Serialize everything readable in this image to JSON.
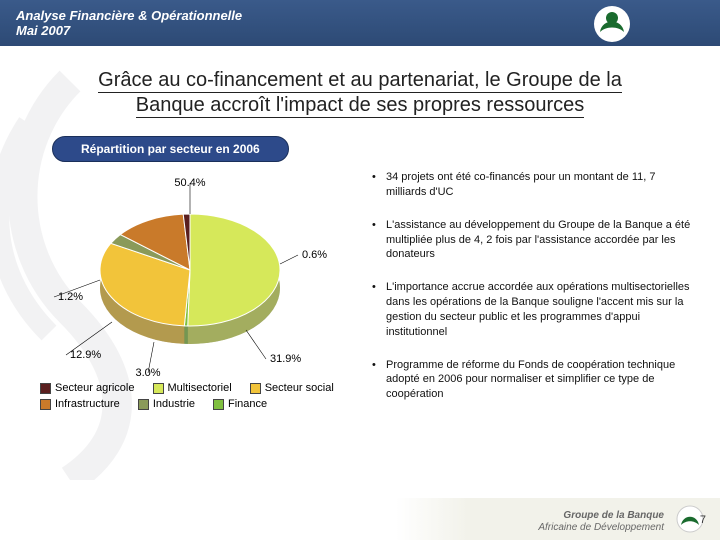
{
  "header": {
    "title": "Analyse Financière & Opérationnelle",
    "subtitle": "Mai 2007"
  },
  "slide_title_line1": "Grâce au co-financement et au partenariat, le Groupe de la",
  "slide_title_line2": "Banque accroît l'impact de ses propres ressources",
  "pill_label": "Répartition par secteur en 2006",
  "chart": {
    "type": "pie-3d",
    "background_color": "#ffffff",
    "slices": [
      {
        "label": "Multisectoriel",
        "value": 50.4,
        "pct_text": "50.4%",
        "color": "#d6e85a"
      },
      {
        "label": "Finance",
        "value": 0.6,
        "pct_text": "0.6%",
        "color": "#7fbf3f"
      },
      {
        "label": "Secteur social",
        "value": 31.9,
        "pct_text": "31.9%",
        "color": "#f2c43a"
      },
      {
        "label": "Industrie",
        "value": 3.0,
        "pct_text": "3.0%",
        "color": "#8a9a5a"
      },
      {
        "label": "Infrastructure",
        "value": 12.9,
        "pct_text": "12.9%",
        "color": "#c97a2a"
      },
      {
        "label": "Secteur agricole",
        "value": 1.2,
        "pct_text": "1.2%",
        "color": "#5a1f1f"
      }
    ],
    "legend_order": [
      5,
      0,
      2,
      4,
      3,
      1
    ],
    "label_fontsize": 11
  },
  "bullets": [
    "34 projets ont été co-financés pour un montant de 11, 7 milliards d'UC",
    "L'assistance au développement du Groupe de la Banque a été multipliée plus de 4, 2 fois par l'assistance accordée par les donateurs",
    "L'importance accrue accordée aux opérations multisectorielles dans les opérations de la Banque souligne l'accent mis sur la gestion du secteur public et les programmes d'appui institutionnel",
    "Programme de réforme du Fonds de coopération technique adopté en 2006 pour normaliser et simplifier ce type de coopération"
  ],
  "footer": {
    "line1": "Groupe de la Banque",
    "line2": "Africaine de Développement",
    "page": "7"
  },
  "colors": {
    "header_bg_top": "#3a5a8a",
    "header_bg_bot": "#2d4a75",
    "pill_bg": "#2d4a8a"
  }
}
